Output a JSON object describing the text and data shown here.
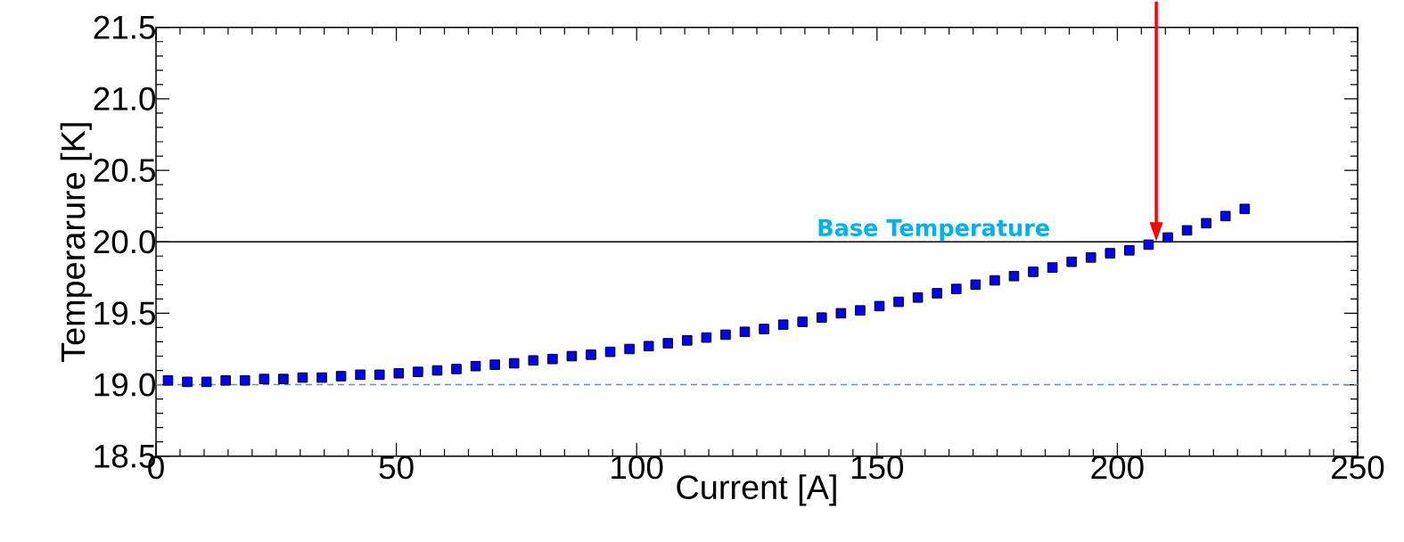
{
  "chart_data": {
    "type": "scatter",
    "xlabel": "Current [A]",
    "ylabel": "Temperarure [K]",
    "x": [
      2.5,
      6.5,
      10.5,
      14.5,
      18.5,
      22.5,
      26.5,
      30.5,
      34.5,
      38.5,
      42.5,
      46.5,
      50.5,
      54.5,
      58.5,
      62.5,
      66.5,
      70.5,
      74.5,
      78.5,
      82.5,
      86.5,
      90.5,
      94.5,
      98.5,
      102.5,
      106.5,
      110.5,
      114.5,
      118.5,
      122.5,
      126.5,
      130.5,
      134.5,
      138.5,
      142.5,
      146.5,
      150.5,
      154.5,
      158.5,
      162.5,
      166.5,
      170.5,
      174.5,
      178.5,
      182.5,
      186.5,
      190.5,
      194.5,
      198.5,
      202.5,
      206.5,
      210.5,
      214.5,
      218.5,
      222.5,
      226.5
    ],
    "series": [
      {
        "color": "#0000ff",
        "values": [
          19.03,
          19.02,
          19.02,
          19.03,
          19.03,
          19.04,
          19.04,
          19.05,
          19.05,
          19.06,
          19.07,
          19.07,
          19.08,
          19.09,
          19.1,
          19.11,
          19.13,
          19.14,
          19.15,
          19.17,
          19.18,
          19.2,
          19.21,
          19.23,
          19.25,
          19.27,
          19.29,
          19.31,
          19.33,
          19.35,
          19.37,
          19.39,
          19.42,
          19.44,
          19.47,
          19.5,
          19.52,
          19.55,
          19.58,
          19.61,
          19.64,
          19.67,
          19.7,
          19.73,
          19.76,
          19.79,
          19.82,
          19.86,
          19.89,
          19.92,
          19.94,
          19.98,
          20.03,
          20.08,
          20.13,
          20.18,
          20.23
        ]
      }
    ],
    "marker": "square",
    "xlim": [
      0,
      250
    ],
    "xticks": [
      0,
      50,
      100,
      150,
      200,
      250
    ],
    "ylim": [
      18.5,
      21.5
    ],
    "yticks": [
      {
        "value": 18.5,
        "label": "18.5"
      },
      {
        "value": 19.0,
        "label": "19.0"
      },
      {
        "value": 19.5,
        "label": "19.5"
      },
      {
        "value": 20.0,
        "label": "20.0"
      },
      {
        "value": 20.5,
        "label": "20.5"
      },
      {
        "value": 21.0,
        "label": "21.0"
      },
      {
        "value": 21.5,
        "label": "21.5"
      }
    ],
    "grid": false,
    "ref_lines": [
      {
        "axis": "y",
        "value": 20.0,
        "label": "Base Temperature",
        "color": "#000000",
        "line_style": "solid"
      },
      {
        "axis": "y",
        "value": 19.0,
        "color": "#5b8fd6",
        "line_style": "dashed"
      }
    ]
  }
}
